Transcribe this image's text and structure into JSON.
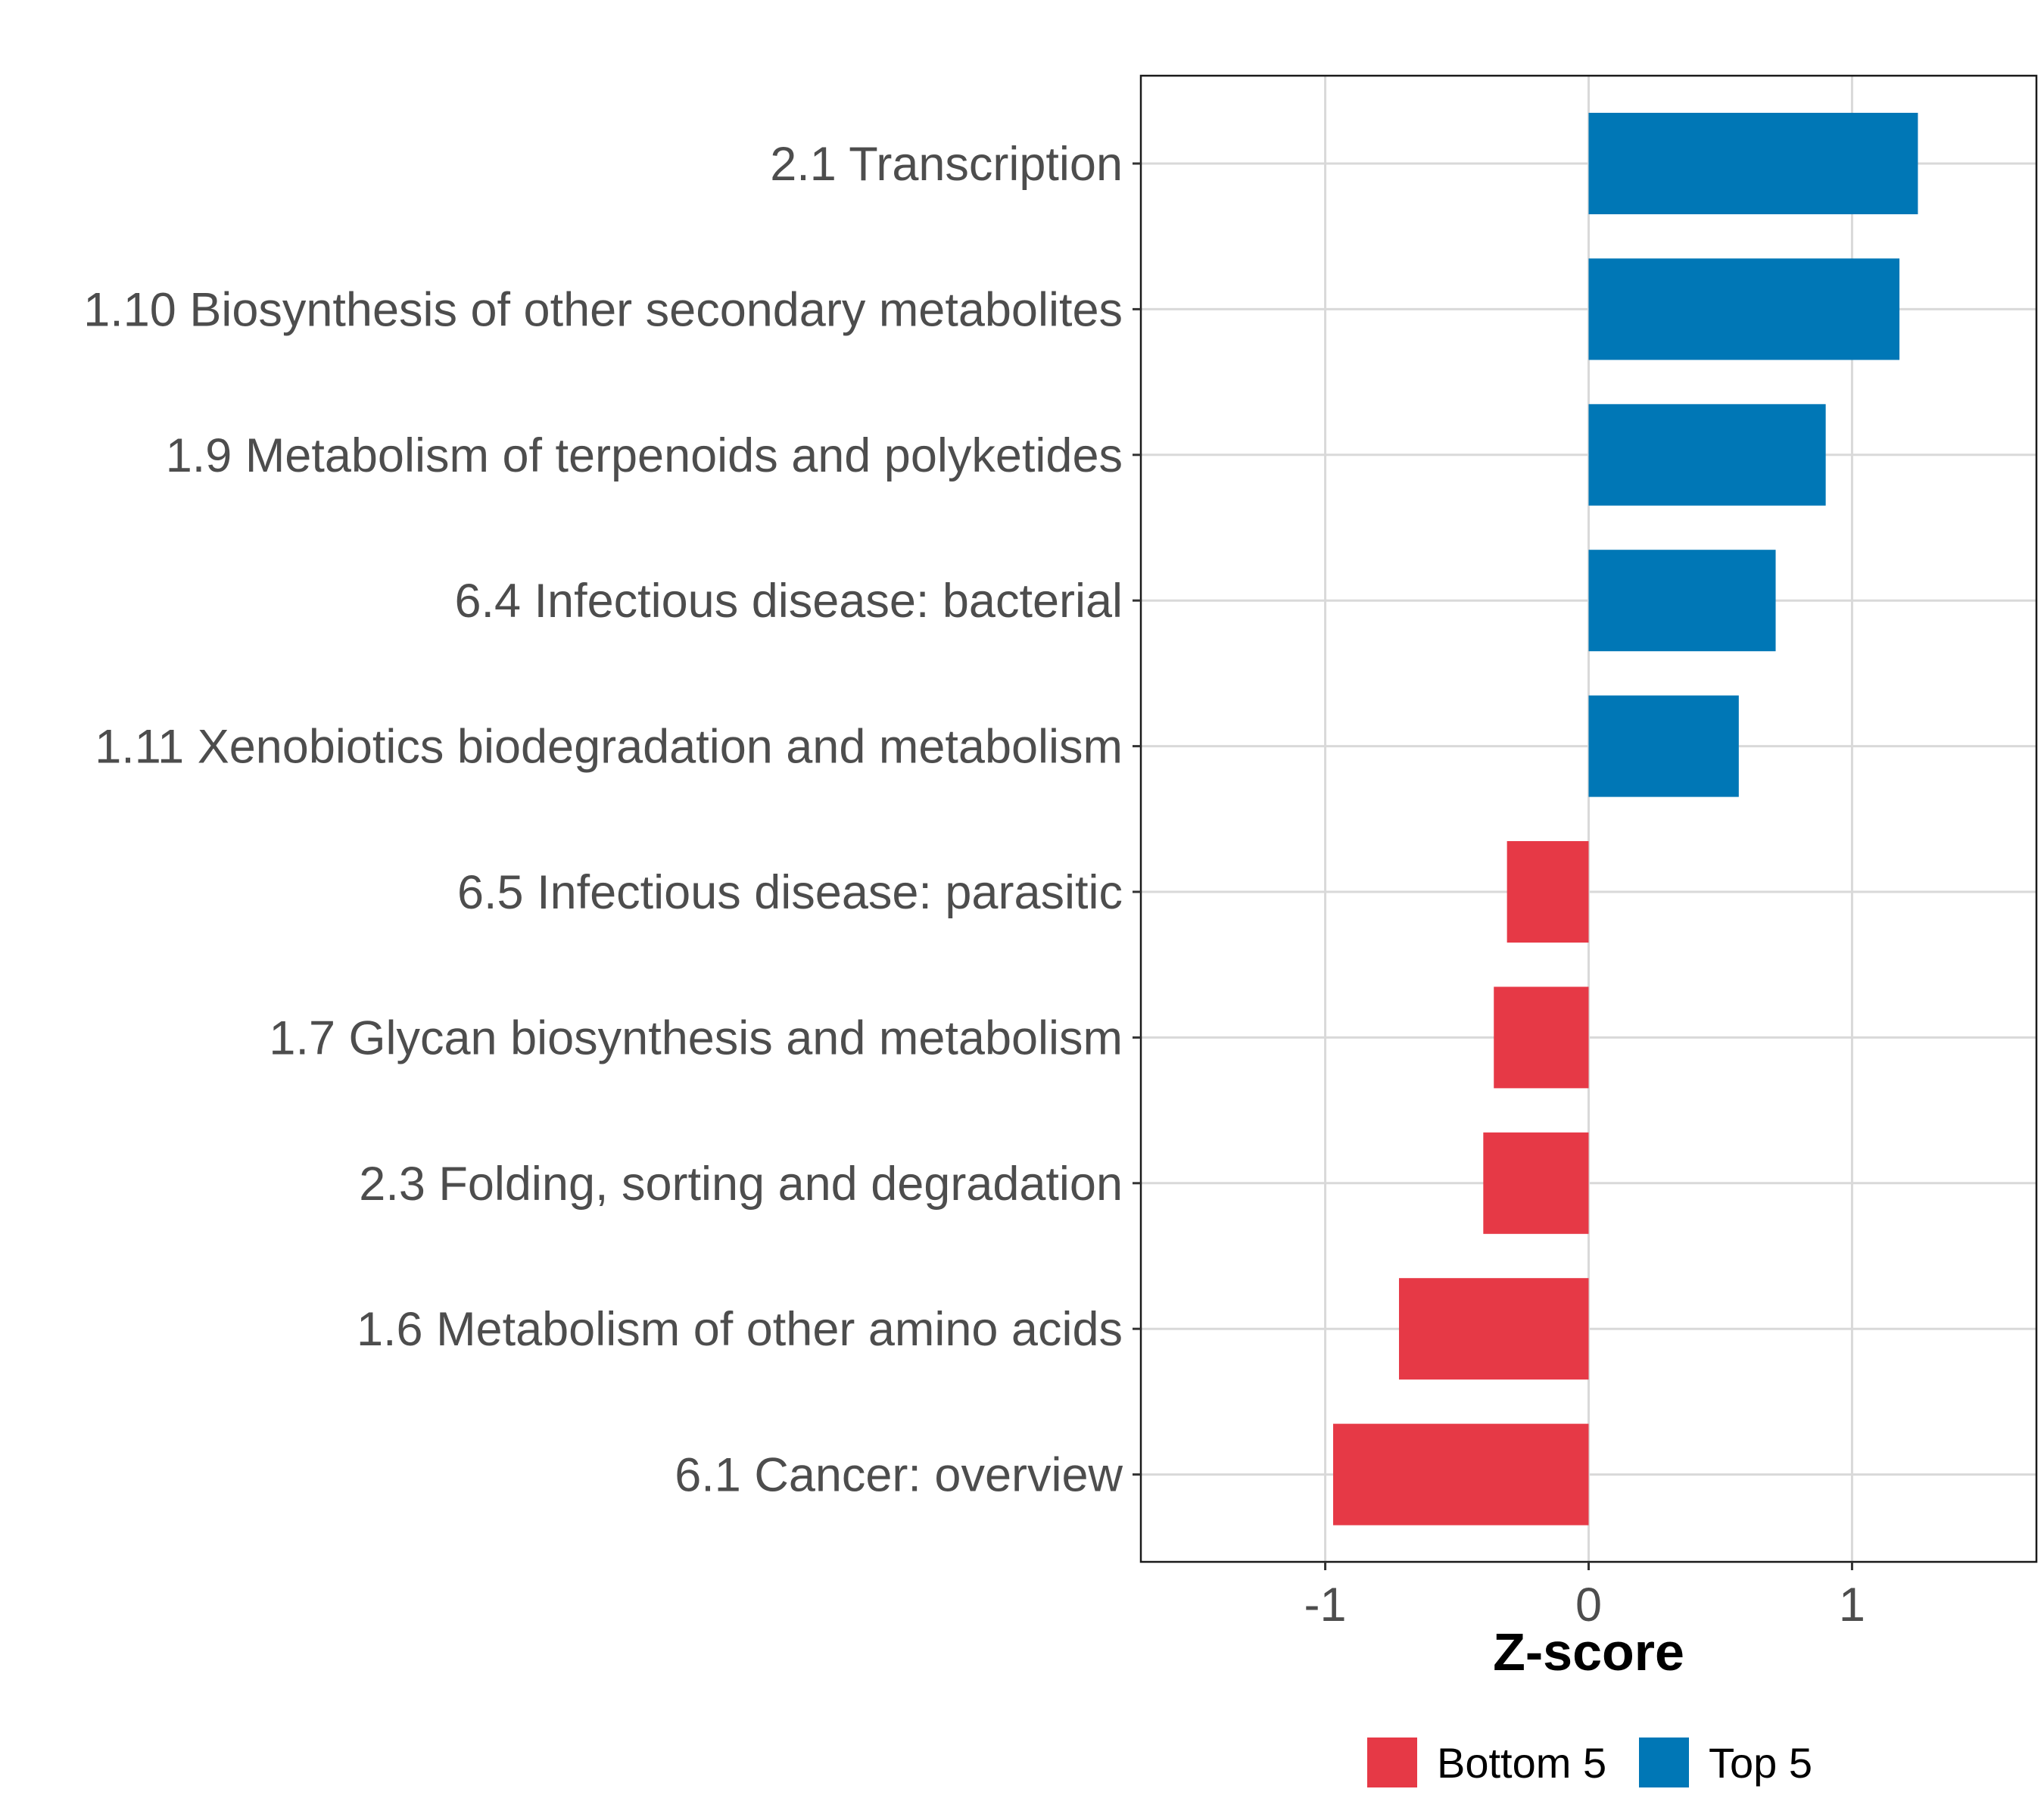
{
  "chart_data": {
    "type": "bar",
    "orientation": "horizontal",
    "title": "",
    "xlabel": "Z-score",
    "ylabel": "",
    "xlim": [
      -1.7,
      1.7
    ],
    "xticks": [
      -1,
      0,
      1
    ],
    "xtick_labels": [
      "-1",
      "0",
      "1"
    ],
    "grid": true,
    "legend_position": "bottom",
    "categories": [
      "2.1 Transcription",
      "1.10 Biosynthesis of other secondary metabolites",
      "1.9 Metabolism of terpenoids and polyketides",
      "6.4 Infectious disease: bacterial",
      "1.11 Xenobiotics biodegradation and metabolism",
      "6.5 Infectious disease: parasitic",
      "1.7 Glycan biosynthesis and metabolism",
      "2.3 Folding, sorting and degradation",
      "1.6 Metabolism of other amino acids",
      "6.1 Cancer: overview"
    ],
    "values": [
      1.25,
      1.18,
      0.9,
      0.71,
      0.57,
      -0.31,
      -0.36,
      -0.4,
      -0.72,
      -0.97
    ],
    "groups": [
      "Top 5",
      "Top 5",
      "Top 5",
      "Top 5",
      "Top 5",
      "Bottom 5",
      "Bottom 5",
      "Bottom 5",
      "Bottom 5",
      "Bottom 5"
    ],
    "legend": [
      {
        "label": "Bottom 5",
        "color": "#e63946"
      },
      {
        "label": "Top 5",
        "color": "#0077b6"
      }
    ],
    "colors": {
      "Top 5": "#0077b6",
      "Bottom 5": "#e63946"
    }
  }
}
